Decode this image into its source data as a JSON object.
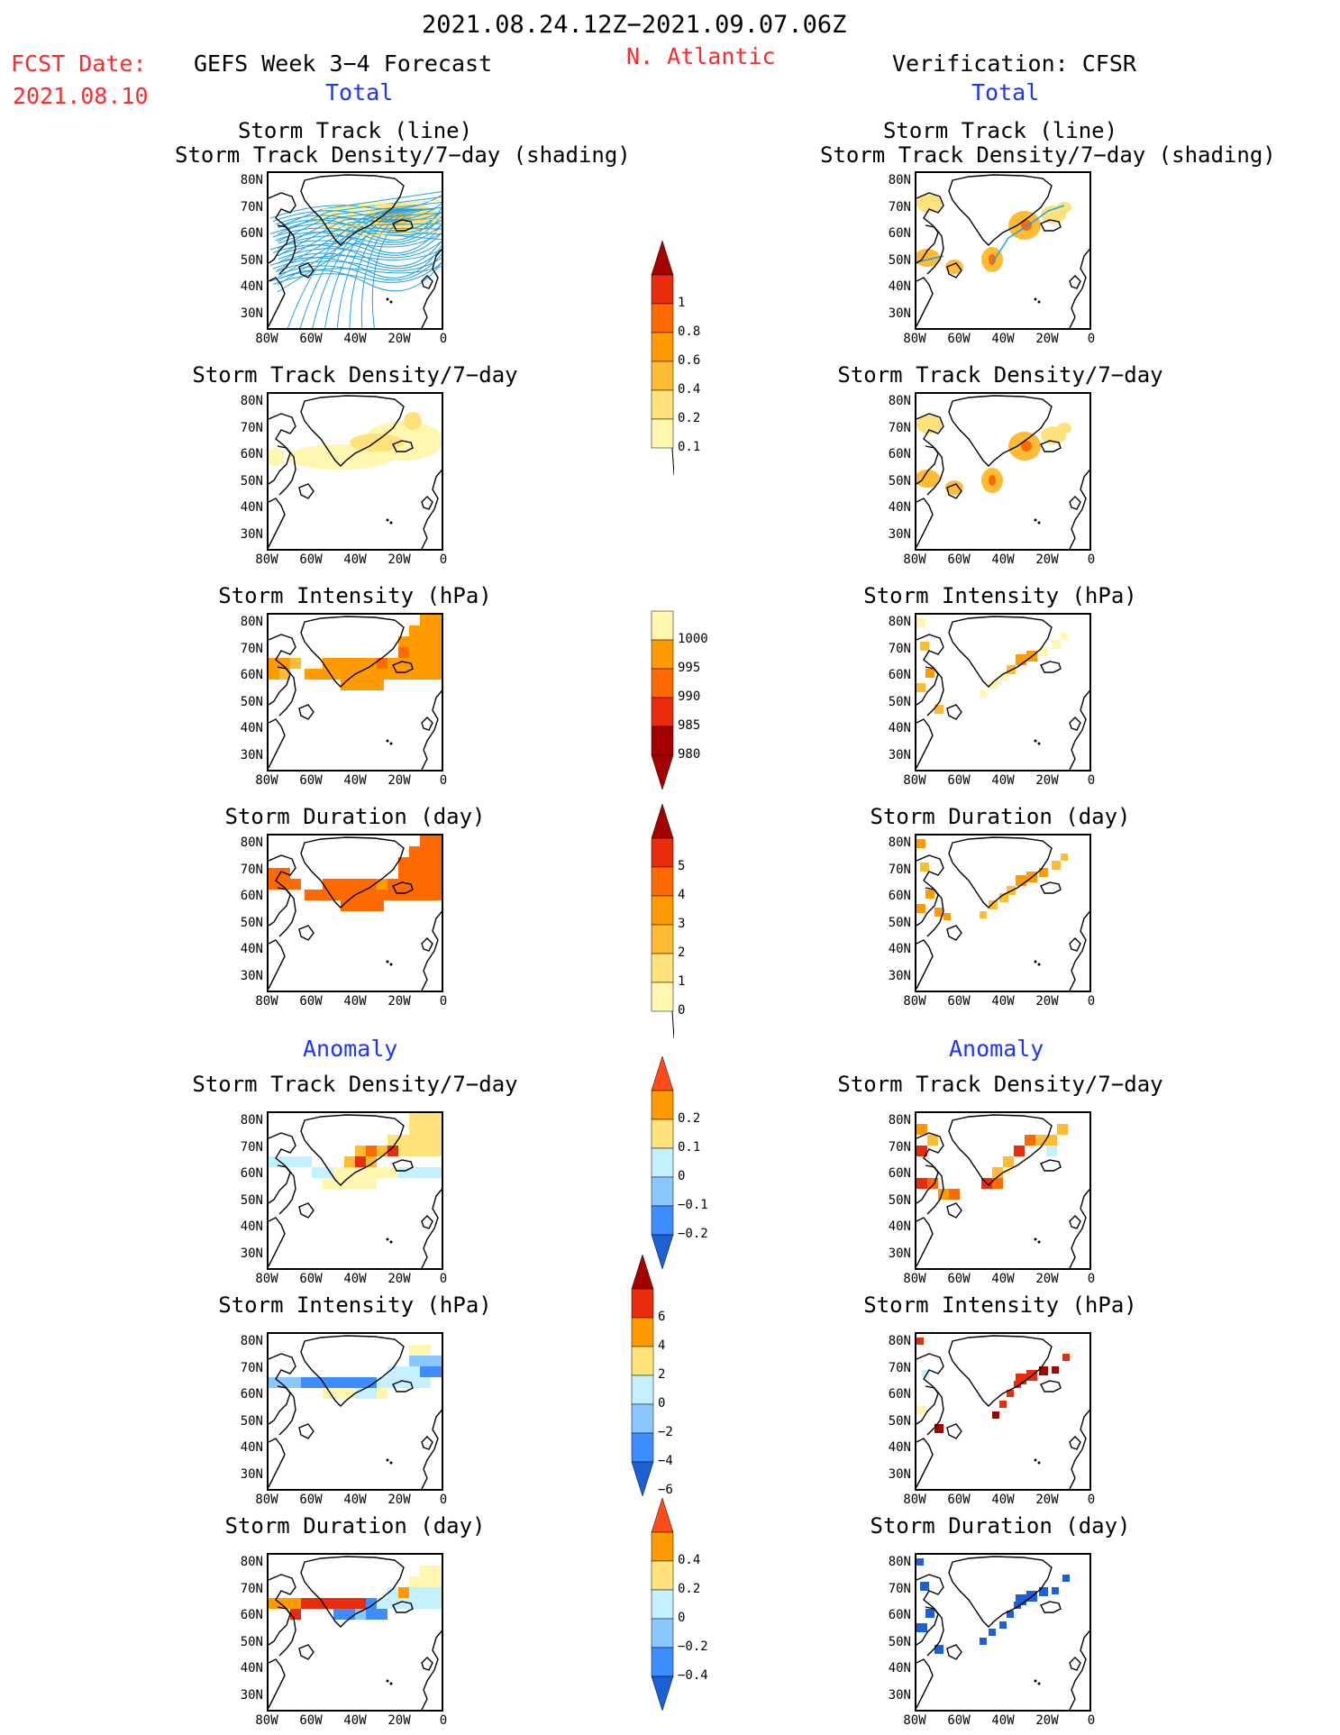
{
  "header": {
    "date_range": "2021.08.24.12Z−2021.09.07.06Z",
    "fcst_label": "FCST Date:",
    "fcst_date": "2021.08.10",
    "left_title": "GEFS Week 3−4 Forecast",
    "region": "N. Atlantic",
    "right_title": "Verification: CFSR",
    "total_left": "Total",
    "total_right": "Total",
    "anomaly_left": "Anomaly",
    "anomaly_right": "Anomaly"
  },
  "panel_titles": {
    "track1": "Storm Track (line)",
    "track2": "Storm Track Density/7−day (shading)",
    "density": "Storm Track Density/7−day",
    "intensity": "Storm Intensity (hPa)",
    "duration": "Storm Duration (day)"
  },
  "axes": {
    "lat_labels": [
      "80N",
      "70N",
      "60N",
      "50N",
      "40N",
      "30N"
    ],
    "lon_labels": [
      "80W",
      "60W",
      "40W",
      "20W",
      "0"
    ]
  },
  "colorbars": {
    "density_total": [
      "1",
      "0.8",
      "0.6",
      "0.4",
      "0.2",
      "0.1"
    ],
    "intensity_total": [
      "1000",
      "995",
      "990",
      "985",
      "980"
    ],
    "duration_total": [
      "5",
      "4",
      "3",
      "2",
      "1",
      "0"
    ],
    "density_anom": [
      "0.2",
      "0.1",
      "0",
      "−0.1",
      "−0.2"
    ],
    "intensity_anom": [
      "6",
      "4",
      "2",
      "0",
      "−2",
      "−4",
      "−6"
    ],
    "duration_anom": [
      "0.4",
      "0.2",
      "0",
      "−0.2",
      "−0.4"
    ]
  },
  "colors": {
    "red_title": "#ff2a2a",
    "blue_title": "#1c34ff",
    "track_line": "#1fa0e8",
    "pale_yellow": "#fff6b0",
    "yellow": "#ffe27a",
    "gold": "#ffbb33",
    "orange": "#ff9a00",
    "dark_orange": "#ff6a00",
    "red": "#e82c0c",
    "dark_red": "#a50000",
    "light_cyan": "#c4f0ff",
    "light_blue": "#8ac7ff",
    "blue": "#3d8dff",
    "dark_blue": "#1c5fd6"
  }
}
